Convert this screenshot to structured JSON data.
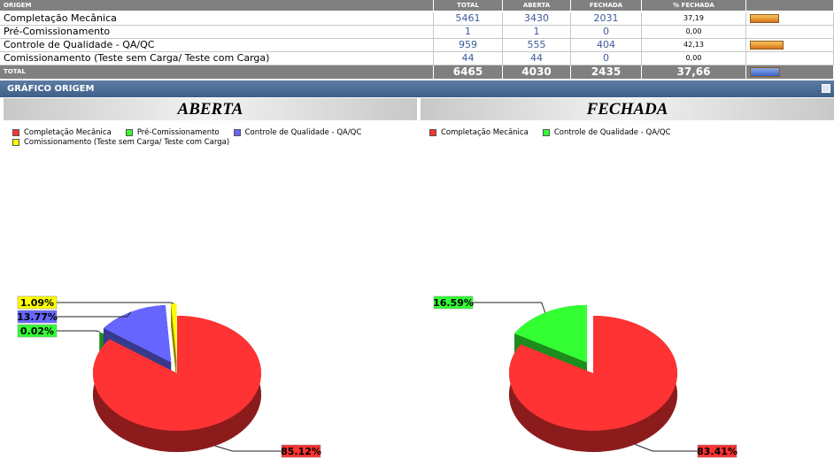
{
  "table": {
    "columns": [
      "ORIGEM",
      "TOTAL",
      "ABERTA",
      "FECHADA",
      "% FECHADA"
    ],
    "rows": [
      {
        "origem": "Completação Mecânica",
        "total": "5461",
        "aberta": "3430",
        "fechada": "2031",
        "pct": {
          "value": 37.19,
          "label": "37,19"
        }
      },
      {
        "origem": "Pré-Comissionamento",
        "total": "1",
        "aberta": "1",
        "fechada": "0",
        "pct": {
          "value": 0,
          "label": "0,00"
        }
      },
      {
        "origem": "Controle de Qualidade - QA/QC",
        "total": "959",
        "aberta": "555",
        "fechada": "404",
        "pct": {
          "value": 42.13,
          "label": "42,13"
        }
      },
      {
        "origem": "Comissionamento (Teste sem Carga/ Teste com Carga)",
        "total": "44",
        "aberta": "44",
        "fechada": "0",
        "pct": {
          "value": 0,
          "label": "0,00"
        }
      }
    ],
    "total": {
      "origem": "TOTAL",
      "total": "6465",
      "aberta": "4030",
      "fechada": "2435",
      "pct": {
        "value": 37.66,
        "label": "37,66"
      }
    }
  },
  "section_title": "GRÁFICO ORIGEM",
  "chart_data": [
    {
      "type": "pie",
      "title": "ABERTA",
      "categories": [
        "Completação Mecânica",
        "Pré-Comissionamento",
        "Controle de Qualidade - QA/QC",
        "Comissionamento (Teste sem Carga/ Teste com Carga)"
      ],
      "colors": [
        "#ff3333",
        "#33ff33",
        "#6666ff",
        "#ffff00"
      ],
      "values": [
        85.12,
        0.02,
        13.77,
        1.09
      ],
      "value_labels": [
        "85.12%",
        "0.02%",
        "13.77%",
        "1.09%"
      ]
    },
    {
      "type": "pie",
      "title": "FECHADA",
      "categories": [
        "Completação Mecânica",
        "Controle de Qualidade - QA/QC"
      ],
      "colors": [
        "#ff3333",
        "#33ff33"
      ],
      "values": [
        83.41,
        16.59
      ],
      "value_labels": [
        "83.41%",
        "16.59%"
      ]
    }
  ]
}
